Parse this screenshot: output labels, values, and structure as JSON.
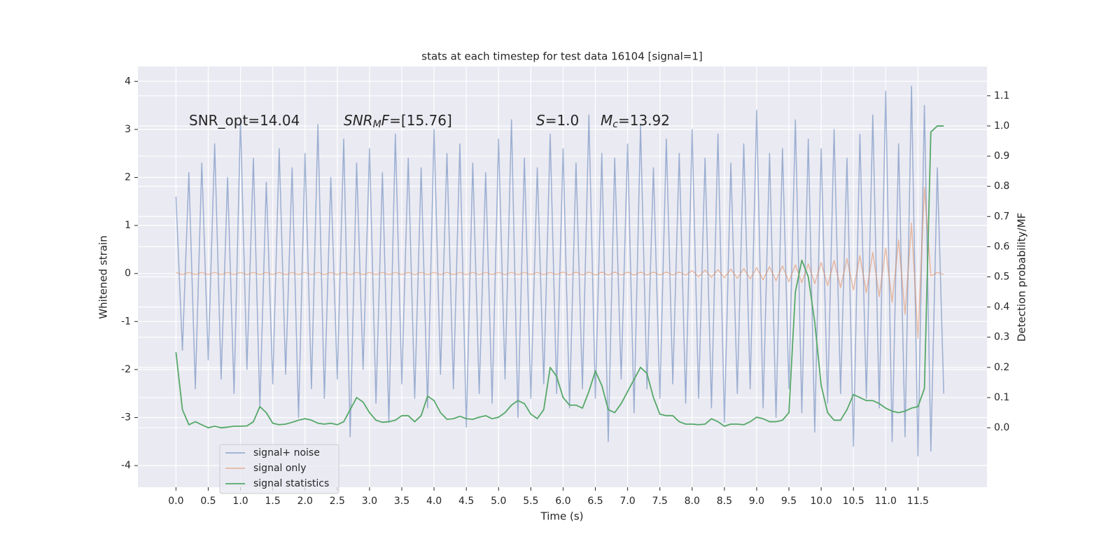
{
  "chart_data": {
    "type": "line",
    "title": "stats at each timestep for test data 16104 [signal=1]",
    "xlabel": "Time (s)",
    "ylabel": "Whitened strain",
    "y2label": "Detection probability/MF",
    "grid": true,
    "legend": "lower left",
    "xlim": [
      -0.59,
      12.57
    ],
    "ylim": [
      -4.45,
      4.31
    ],
    "y2lim": [
      -0.197,
      1.197
    ],
    "xticks": [
      {
        "value": 0,
        "label": "0.0"
      },
      0.5,
      {
        "value": 1,
        "label": "1.0"
      },
      1.5,
      {
        "value": 2,
        "label": "2.0"
      },
      2.5,
      {
        "value": 3,
        "label": "3.0"
      },
      3.5,
      {
        "value": 4,
        "label": "4.0"
      },
      4.5,
      {
        "value": 5,
        "label": "5.0"
      },
      5.5,
      {
        "value": 6,
        "label": "6.0"
      },
      6.5,
      {
        "value": 7,
        "label": "7.0"
      },
      7.5,
      {
        "value": 8,
        "label": "8.0"
      },
      8.5,
      {
        "value": 9,
        "label": "9.0"
      },
      9.5,
      {
        "value": 10,
        "label": "10.0"
      },
      10.5,
      {
        "value": 11,
        "label": "11.0"
      },
      11.5
    ],
    "yticks": [
      -4,
      -3,
      -2,
      -1,
      0,
      1,
      2,
      3,
      4
    ],
    "y2ticks": [
      {
        "value": 0,
        "label": "0.0"
      },
      0.1,
      0.2,
      0.3,
      0.4,
      0.5,
      0.6,
      0.7,
      0.8,
      0.9,
      {
        "value": 1,
        "label": "1.0"
      },
      1.1
    ],
    "annotations": [
      {
        "parts": [
          {
            "text": "SNR_opt=14.04",
            "style": "normal"
          }
        ]
      },
      {
        "parts": [
          {
            "text": "SNR",
            "style": "italic"
          },
          {
            "text": "M",
            "style": "sub"
          },
          {
            "text": "F",
            "style": "italic"
          },
          {
            "text": "=[15.76]",
            "style": "normal"
          }
        ]
      },
      {
        "parts": [
          {
            "text": "S",
            "style": "italic"
          },
          {
            "text": "=1.0",
            "style": "normal"
          }
        ]
      },
      {
        "parts": [
          {
            "text": "M",
            "style": "italic"
          },
          {
            "text": "c",
            "style": "sub"
          },
          {
            "text": "=13.92",
            "style": "normal"
          }
        ]
      }
    ],
    "x": [
      0,
      0.1,
      0.2,
      0.3,
      0.4,
      0.5,
      0.6,
      0.7,
      0.8,
      0.9,
      1,
      1.1,
      1.2,
      1.3,
      1.4,
      1.5,
      1.6,
      1.7,
      1.8,
      1.9,
      2,
      2.1,
      2.2,
      2.3,
      2.4,
      2.5,
      2.6,
      2.7,
      2.8,
      2.9,
      3,
      3.1,
      3.2,
      3.3,
      3.4,
      3.5,
      3.6,
      3.7,
      3.8,
      3.9,
      4,
      4.1,
      4.2,
      4.3,
      4.4,
      4.5,
      4.6,
      4.7,
      4.8,
      4.9,
      5,
      5.1,
      5.2,
      5.3,
      5.4,
      5.5,
      5.6,
      5.7,
      5.8,
      5.9,
      6,
      6.1,
      6.2,
      6.3,
      6.4,
      6.5,
      6.6,
      6.7,
      6.8,
      6.9,
      7,
      7.1,
      7.2,
      7.3,
      7.4,
      7.5,
      7.6,
      7.7,
      7.8,
      7.9,
      8,
      8.1,
      8.2,
      8.3,
      8.4,
      8.5,
      8.6,
      8.7,
      8.8,
      8.9,
      9,
      9.1,
      9.2,
      9.3,
      9.4,
      9.5,
      9.6,
      9.7,
      9.8,
      9.9,
      10,
      10.1,
      10.2,
      10.3,
      10.4,
      10.5,
      10.6,
      10.7,
      10.8,
      10.9,
      11,
      11.1,
      11.2,
      11.3,
      11.4,
      11.5,
      11.6,
      11.7,
      11.8,
      11.9
    ],
    "series": [
      {
        "name": "signal+ noise",
        "color": "#4c72b0",
        "alpha": 0.5,
        "axis": "y",
        "values": [
          1.6,
          -1.6,
          2.1,
          -2.4,
          2.3,
          -1.8,
          2.7,
          -2.2,
          2.0,
          -2.5,
          3.2,
          -2.0,
          2.4,
          -2.8,
          1.9,
          -2.3,
          2.6,
          -2.1,
          2.2,
          -3.0,
          2.5,
          -2.4,
          3.1,
          -2.6,
          2.0,
          -2.2,
          2.8,
          -3.4,
          2.3,
          -2.0,
          2.6,
          -2.7,
          2.1,
          -3.1,
          2.9,
          -2.3,
          2.4,
          -2.6,
          2.2,
          -2.8,
          3.0,
          -2.1,
          2.5,
          -2.4,
          2.7,
          -3.2,
          2.3,
          -2.5,
          2.1,
          -2.7,
          2.8,
          -2.2,
          3.2,
          -3.0,
          2.4,
          -2.6,
          2.2,
          -2.3,
          2.9,
          -2.5,
          2.6,
          -2.8,
          2.3,
          -2.4,
          3.3,
          -2.6,
          2.5,
          -3.5,
          2.4,
          -2.2,
          2.7,
          -2.9,
          3.1,
          -2.4,
          2.2,
          -2.6,
          2.8,
          -2.3,
          2.5,
          -2.7,
          3.0,
          -2.6,
          2.4,
          -2.8,
          2.9,
          -3.1,
          2.3,
          -2.5,
          2.7,
          -2.4,
          3.4,
          -2.8,
          2.5,
          -3.0,
          2.6,
          -2.4,
          3.2,
          -2.9,
          2.8,
          -3.3,
          2.6,
          -2.7,
          3.0,
          -2.5,
          2.4,
          -3.6,
          2.9,
          -2.6,
          3.3,
          -2.8,
          3.8,
          -3.5,
          2.7,
          -3.4,
          3.9,
          -3.8,
          3.5,
          -3.7,
          2.2,
          -2.5
        ]
      },
      {
        "name": "signal only",
        "color": "#dd8452",
        "alpha": 0.5,
        "axis": "y",
        "values": [
          0.02,
          -0.02,
          0.02,
          -0.02,
          0.02,
          -0.02,
          0.02,
          -0.02,
          0.02,
          -0.02,
          0.02,
          -0.02,
          0.02,
          -0.02,
          0.02,
          -0.02,
          0.02,
          -0.02,
          0.02,
          -0.02,
          0.02,
          -0.02,
          0.02,
          -0.02,
          0.02,
          -0.02,
          0.02,
          -0.02,
          0.02,
          -0.02,
          0.02,
          -0.02,
          0.02,
          -0.02,
          0.02,
          -0.02,
          0.02,
          -0.02,
          0.02,
          -0.02,
          0.02,
          -0.02,
          0.02,
          -0.02,
          0.02,
          -0.02,
          0.02,
          -0.02,
          0.02,
          -0.02,
          0.02,
          -0.02,
          0.02,
          -0.02,
          0.02,
          -0.02,
          0.02,
          -0.02,
          0.02,
          -0.02,
          0.03,
          -0.03,
          0.03,
          -0.03,
          0.03,
          -0.03,
          0.03,
          -0.03,
          0.03,
          -0.03,
          0.03,
          -0.03,
          0.03,
          -0.03,
          0.03,
          -0.03,
          0.03,
          -0.03,
          0.03,
          -0.03,
          0.06,
          -0.07,
          0.07,
          -0.08,
          0.08,
          -0.09,
          0.09,
          -0.1,
          0.1,
          -0.11,
          0.12,
          -0.13,
          0.14,
          -0.15,
          0.16,
          -0.17,
          0.18,
          -0.19,
          0.2,
          -0.21,
          0.23,
          -0.25,
          0.27,
          -0.29,
          0.31,
          -0.34,
          0.37,
          -0.4,
          0.44,
          -0.48,
          0.53,
          -0.6,
          0.7,
          -0.85,
          1.05,
          -1.35,
          1.8,
          -0.05,
          0.02,
          -0.02
        ]
      },
      {
        "name": "signal statistics",
        "color": "#55a868",
        "alpha": 1,
        "axis": "y2",
        "values": [
          0.25,
          0.06,
          0.01,
          0.02,
          0.01,
          0.0,
          0.005,
          0.0,
          0.002,
          0.005,
          0.005,
          0.006,
          0.02,
          0.07,
          0.05,
          0.015,
          0.01,
          0.012,
          0.018,
          0.025,
          0.03,
          0.025,
          0.015,
          0.012,
          0.015,
          0.01,
          0.02,
          0.06,
          0.1,
          0.085,
          0.05,
          0.025,
          0.018,
          0.02,
          0.025,
          0.04,
          0.04,
          0.02,
          0.04,
          0.105,
          0.09,
          0.05,
          0.028,
          0.03,
          0.038,
          0.03,
          0.028,
          0.035,
          0.04,
          0.03,
          0.035,
          0.05,
          0.075,
          0.09,
          0.08,
          0.045,
          0.03,
          0.06,
          0.2,
          0.17,
          0.1,
          0.075,
          0.075,
          0.065,
          0.12,
          0.188,
          0.14,
          0.06,
          0.05,
          0.08,
          0.12,
          0.16,
          0.2,
          0.18,
          0.1,
          0.045,
          0.04,
          0.04,
          0.02,
          0.012,
          0.012,
          0.01,
          0.012,
          0.03,
          0.02,
          0.005,
          0.012,
          0.012,
          0.01,
          0.02,
          0.035,
          0.03,
          0.02,
          0.02,
          0.025,
          0.05,
          0.45,
          0.555,
          0.5,
          0.35,
          0.14,
          0.05,
          0.025,
          0.025,
          0.06,
          0.11,
          0.1,
          0.09,
          0.09,
          0.08,
          0.065,
          0.055,
          0.05,
          0.055,
          0.065,
          0.07,
          0.13,
          0.98,
          1.0,
          1.0
        ]
      }
    ]
  }
}
